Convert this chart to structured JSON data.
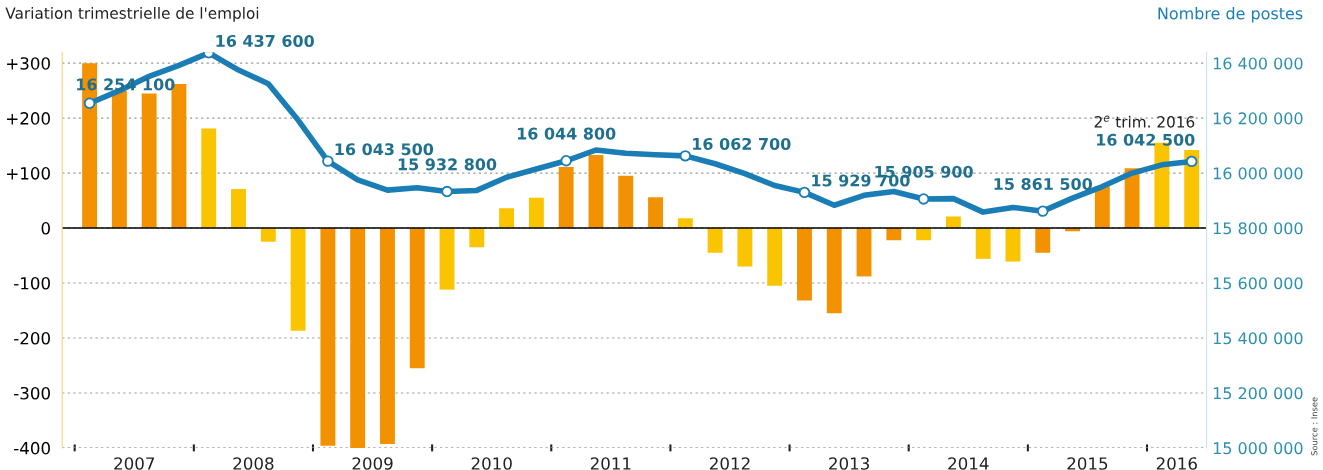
{
  "chart_data": {
    "type": "bar",
    "ylabel": "Variation trimestrielle de l'emploi",
    "y2label": "Nombre de postes",
    "x": [
      2007.0,
      2007.25,
      2007.5,
      2007.75,
      2008.0,
      2008.25,
      2008.5,
      2008.75,
      2009.0,
      2009.25,
      2009.5,
      2009.75,
      2010.0,
      2010.25,
      2010.5,
      2010.75,
      2011.0,
      2011.25,
      2011.5,
      2011.75,
      2012.0,
      2012.25,
      2012.5,
      2012.75,
      2013.0,
      2013.25,
      2013.5,
      2013.75,
      2014.0,
      2014.25,
      2014.5,
      2014.75,
      2015.0,
      2015.25,
      2015.5,
      2015.75,
      2016.0,
      2016.25
    ],
    "series": [
      {
        "colors": [
          "#f39200",
          "#f39200",
          "#f39200",
          "#f39200",
          "#fbc400",
          "#fbc400",
          "#fbc400",
          "#fbc400",
          "#f39200",
          "#f39200",
          "#f39200",
          "#f39200",
          "#fbc400",
          "#fbc400",
          "#fbc400",
          "#fbc400",
          "#f39200",
          "#f39200",
          "#f39200",
          "#f39200",
          "#fbc400",
          "#fbc400",
          "#fbc400",
          "#fbc400",
          "#f39200",
          "#f39200",
          "#f39200",
          "#f39200",
          "#fbc400",
          "#fbc400",
          "#fbc400",
          "#fbc400",
          "#f39200",
          "#f39200",
          "#f39200",
          "#f39200",
          "#fbc400",
          "#fbc400"
        ],
        "values": [
          300,
          250,
          245,
          262,
          181,
          71,
          -25,
          -187,
          -396,
          -400,
          -393,
          -255,
          -112,
          -35,
          36,
          55,
          111,
          133,
          95,
          56,
          18,
          -45,
          -70,
          -105,
          -132,
          -155,
          -88,
          -22,
          -22,
          21,
          -56,
          -61,
          -45,
          -6,
          76,
          109,
          155,
          142
        ]
      },
      {
        "type": "line",
        "axis": "y2",
        "color": "#1a7db5",
        "values": [
          16254100,
          16300000,
          16352000,
          16392000,
          16437600,
          16375000,
          16325000,
          16193000,
          16043500,
          15975000,
          15938000,
          15947000,
          15932800,
          15937000,
          15985000,
          16015000,
          16044800,
          16084000,
          16072000,
          16067000,
          16062700,
          16034000,
          15998000,
          15955000,
          15929700,
          15883000,
          15919000,
          15933000,
          15905900,
          15907000,
          15858000,
          15875000,
          15861500,
          15909000,
          15951000,
          16000000,
          16030000,
          16042500
        ]
      },
      {
        "type": "scatter",
        "axis": "y2",
        "color": "#1a7db5",
        "marker": "circle",
        "x": [
          2007.0,
          2008.0,
          2009.0,
          2010.0,
          2011.0,
          2012.0,
          2013.0,
          2014.0,
          2015.0,
          2016.25
        ],
        "values": [
          16254100,
          16437600,
          16043500,
          15932800,
          16044800,
          16062700,
          15929700,
          15905900,
          15861500,
          16042500
        ],
        "value_labels": [
          "16 254 100",
          "16 437 600",
          "16 043 500",
          "15 932 800",
          "16 044 800",
          "16 062 700",
          "15 929 700",
          "15 905 900",
          "15 861 500",
          "16 042 500"
        ]
      }
    ],
    "xlim": [
      2006.77,
      2016.375
    ],
    "xticks": [
      {
        "value": 2006.875,
        "label": null
      },
      {
        "value": 2007.375,
        "label": "2007"
      },
      {
        "value": 2007.875,
        "label": null
      },
      {
        "value": 2008.375,
        "label": "2008"
      },
      {
        "value": 2008.875,
        "label": null
      },
      {
        "value": 2009.375,
        "label": "2009"
      },
      {
        "value": 2009.875,
        "label": null
      },
      {
        "value": 2010.375,
        "label": "2010"
      },
      {
        "value": 2010.875,
        "label": null
      },
      {
        "value": 2011.375,
        "label": "2011"
      },
      {
        "value": 2011.875,
        "label": null
      },
      {
        "value": 2012.375,
        "label": "2012"
      },
      {
        "value": 2012.875,
        "label": null
      },
      {
        "value": 2013.375,
        "label": "2013"
      },
      {
        "value": 2013.875,
        "label": null
      },
      {
        "value": 2014.375,
        "label": "2014"
      },
      {
        "value": 2014.875,
        "label": null
      },
      {
        "value": 2015.375,
        "label": "2015"
      },
      {
        "value": 2015.875,
        "label": null
      },
      {
        "value": 2016.125,
        "label": "2016"
      }
    ],
    "ylim": [
      -400,
      320
    ],
    "yticks": [
      {
        "value": 300,
        "label": "+300"
      },
      {
        "value": 200,
        "label": "+200"
      },
      {
        "value": 100,
        "label": "+100"
      },
      0,
      -100,
      -200,
      -300,
      -400
    ],
    "y2lim": [
      15000000,
      16440000
    ],
    "y2ticks": [
      {
        "value": 16400000,
        "label": "16 400 000"
      },
      {
        "value": 16200000,
        "label": "16 200 000"
      },
      {
        "value": 16000000,
        "label": "16 000 000"
      },
      {
        "value": 15800000,
        "label": "15 800 000"
      },
      {
        "value": 15600000,
        "label": "15 600 000"
      },
      {
        "value": 15400000,
        "label": "15 400 000"
      },
      {
        "value": 15200000,
        "label": "15 200 000"
      },
      {
        "value": 15000000,
        "label": "15 000 000"
      }
    ],
    "ref_lines": [
      {
        "axis": "y",
        "value": 0,
        "color": "#000000"
      }
    ],
    "grid": "y",
    "annotations": [
      "2$^{e}$ trim. 2016",
      "Source : Insee"
    ]
  }
}
